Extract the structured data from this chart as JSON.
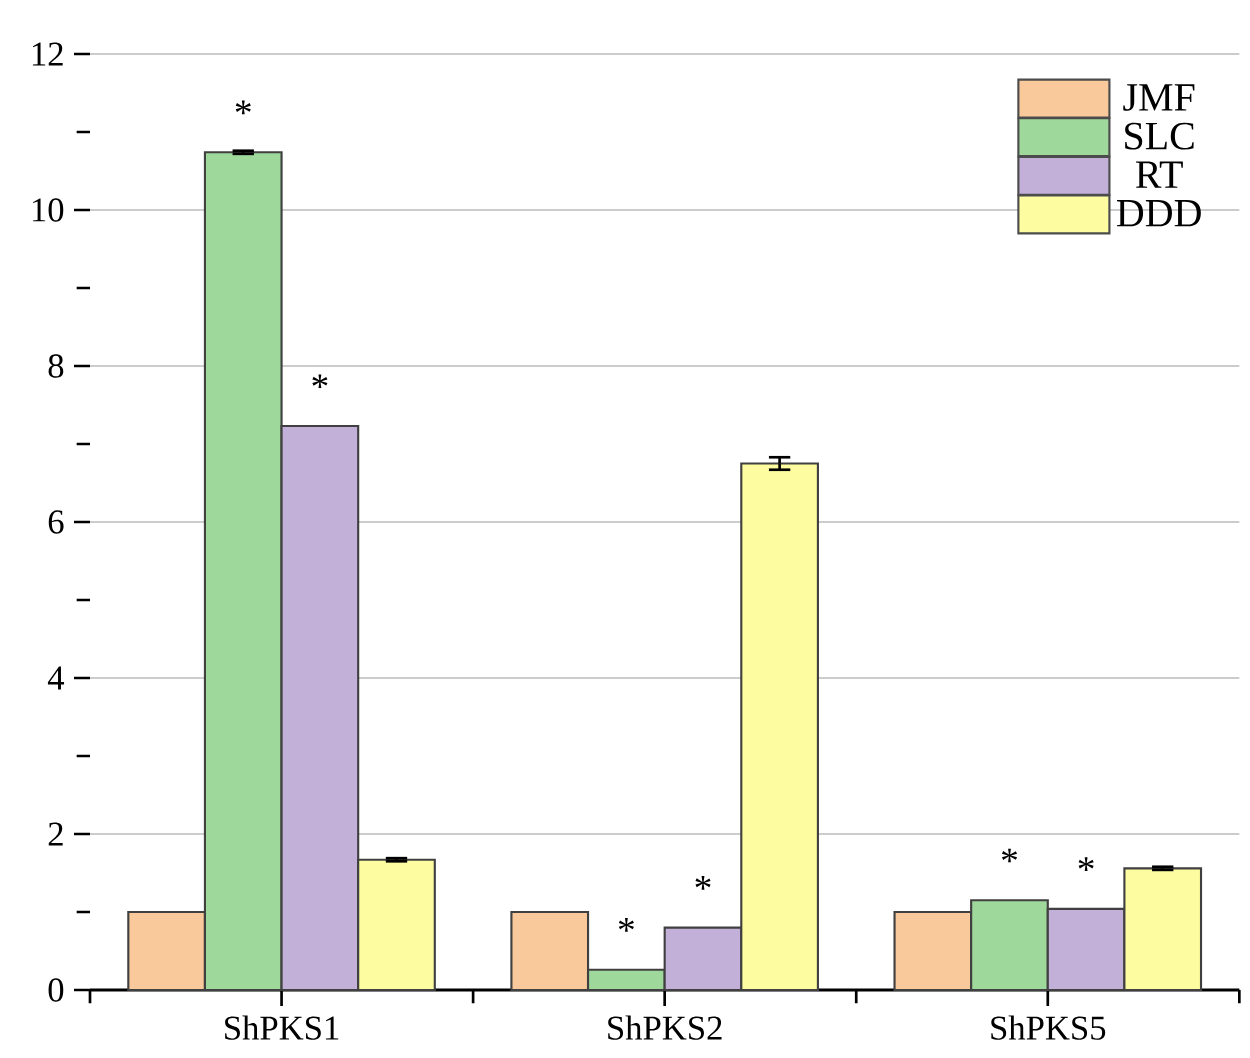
{
  "chart_data": {
    "type": "bar",
    "categories": [
      "ShPKS1",
      "ShPKS2",
      "ShPKS5"
    ],
    "series": [
      {
        "name": "JMF",
        "color": "#f9c89b",
        "values": [
          1.0,
          1.0,
          1.0
        ]
      },
      {
        "name": "SLC",
        "color": "#9ed89b",
        "values": [
          10.74,
          0.26,
          1.15
        ],
        "errors": [
          0.02,
          null,
          null
        ]
      },
      {
        "name": "RT",
        "color": "#c2b0d8",
        "values": [
          7.23,
          0.8,
          1.04
        ]
      },
      {
        "name": "DDD",
        "color": "#fdfca0",
        "values": [
          1.67,
          6.75,
          1.56
        ],
        "errors": [
          0.02,
          0.08,
          0.02
        ]
      }
    ],
    "ylim": [
      0,
      12
    ],
    "yticks": [
      0,
      {
        "value": 1,
        "label": null
      },
      2,
      {
        "value": 3,
        "label": null
      },
      4,
      {
        "value": 5,
        "label": null
      },
      6,
      {
        "value": 7,
        "label": null
      },
      8,
      {
        "value": 9,
        "label": null
      },
      10,
      {
        "value": 11,
        "label": null
      },
      12
    ],
    "grid": "y",
    "legend": "top right",
    "annotations": [
      {
        "text": "*",
        "x": "ShPKS1",
        "y": 10.74
      },
      {
        "text": "*",
        "x": "ShPKS1",
        "y": 7.23
      },
      {
        "text": "*",
        "x": "ShPKS2",
        "y": 0.26
      },
      {
        "text": "*",
        "x": "ShPKS2",
        "y": 0.8
      },
      {
        "text": "*",
        "x": "ShPKS5",
        "y": 1.15
      },
      {
        "text": "*",
        "x": "ShPKS5",
        "y": 1.04
      }
    ]
  }
}
